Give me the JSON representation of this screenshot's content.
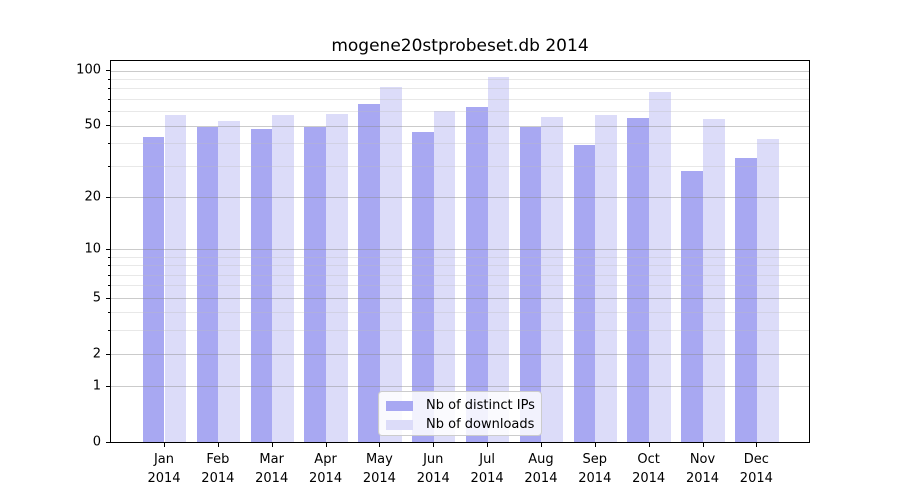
{
  "title": "mogene20stprobeset.db 2014",
  "chart_data": {
    "type": "bar",
    "title": "mogene20stprobeset.db 2014",
    "categories": [
      "Jan 2014",
      "Feb 2014",
      "Mar 2014",
      "Apr 2014",
      "May 2014",
      "Jun 2014",
      "Jul 2014",
      "Aug 2014",
      "Sep 2014",
      "Oct 2014",
      "Nov 2014",
      "Dec 2014"
    ],
    "x_labels": [
      {
        "month": "Jan",
        "year": "2014"
      },
      {
        "month": "Feb",
        "year": "2014"
      },
      {
        "month": "Mar",
        "year": "2014"
      },
      {
        "month": "Apr",
        "year": "2014"
      },
      {
        "month": "May",
        "year": "2014"
      },
      {
        "month": "Jun",
        "year": "2014"
      },
      {
        "month": "Jul",
        "year": "2014"
      },
      {
        "month": "Aug",
        "year": "2014"
      },
      {
        "month": "Sep",
        "year": "2014"
      },
      {
        "month": "Oct",
        "year": "2014"
      },
      {
        "month": "Nov",
        "year": "2014"
      },
      {
        "month": "Dec",
        "year": "2014"
      }
    ],
    "series": [
      {
        "name": "Nb of distinct IPs",
        "color": "#a8a8f2",
        "values": [
          43,
          49,
          48,
          49,
          66,
          46,
          63,
          49,
          39,
          55,
          28,
          33
        ]
      },
      {
        "name": "Nb of downloads",
        "color": "#dcdcf9",
        "values": [
          57,
          53,
          57,
          58,
          81,
          60,
          92,
          56,
          57,
          76,
          54,
          42
        ]
      }
    ],
    "xlabel": "",
    "ylabel": "",
    "y_axis": {
      "scale": "log1p",
      "ticks": [
        0,
        1,
        2,
        5,
        10,
        20,
        50,
        100
      ],
      "tick_labels": [
        "0",
        "1",
        "2",
        "5",
        "10",
        "20",
        "50",
        "100"
      ],
      "minor_gridlines": [
        3,
        4,
        6,
        7,
        8,
        9,
        30,
        40,
        60,
        70,
        80,
        90
      ],
      "ylim": [
        0,
        113
      ]
    },
    "grid": "horizontal, major and minor, drawn over bars",
    "legend_position": "lower center"
  },
  "legend": {
    "items": [
      {
        "label": "Nb of distinct IPs"
      },
      {
        "label": "Nb of downloads"
      }
    ]
  },
  "colors": {
    "bar_dark": "#a8a8f2",
    "bar_light": "#dcdcf9",
    "grid_major": "#cacaca",
    "grid_minor": "#e6e6e6",
    "spine": "#000000",
    "background": "#ffffff"
  }
}
